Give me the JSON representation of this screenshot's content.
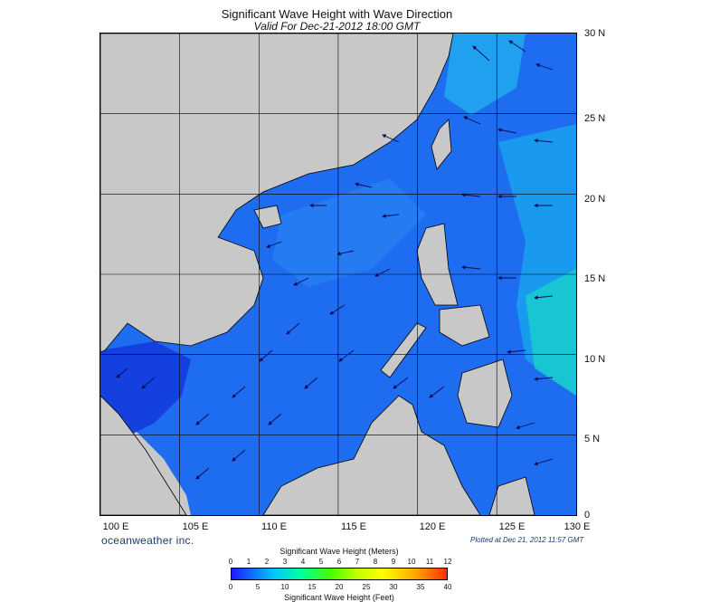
{
  "header": {
    "title": "Significant Wave Height with Wave Direction",
    "subtitle": "Valid For Dec-21-2012 18:00 GMT"
  },
  "map": {
    "longitude_labels": [
      "100 E",
      "105 E",
      "110 E",
      "115 E",
      "120 E",
      "125 E",
      "130 E"
    ],
    "latitude_labels": [
      "30 N",
      "25 N",
      "20 N",
      "15 N",
      "10 N",
      "5 N",
      "0"
    ],
    "land_color": "#c8c8c8",
    "coast_color": "#000000",
    "dominant_wave_direction": "northeast (arrows point southwest)"
  },
  "footer": {
    "brand": "oceanweather inc.",
    "plotted": "Plotted at Dec 21, 2012 11:57 GMT"
  },
  "colorbar": {
    "title_meters": "Significant Wave Height (Meters)",
    "title_feet": "Significant Wave Height (Feet)",
    "meters_ticks": [
      "0",
      "1",
      "2",
      "3",
      "4",
      "5",
      "6",
      "7",
      "8",
      "9",
      "10",
      "11",
      "12"
    ],
    "feet_ticks": [
      "0",
      "5",
      "10",
      "15",
      "20",
      "25",
      "30",
      "35",
      "40"
    ]
  }
}
